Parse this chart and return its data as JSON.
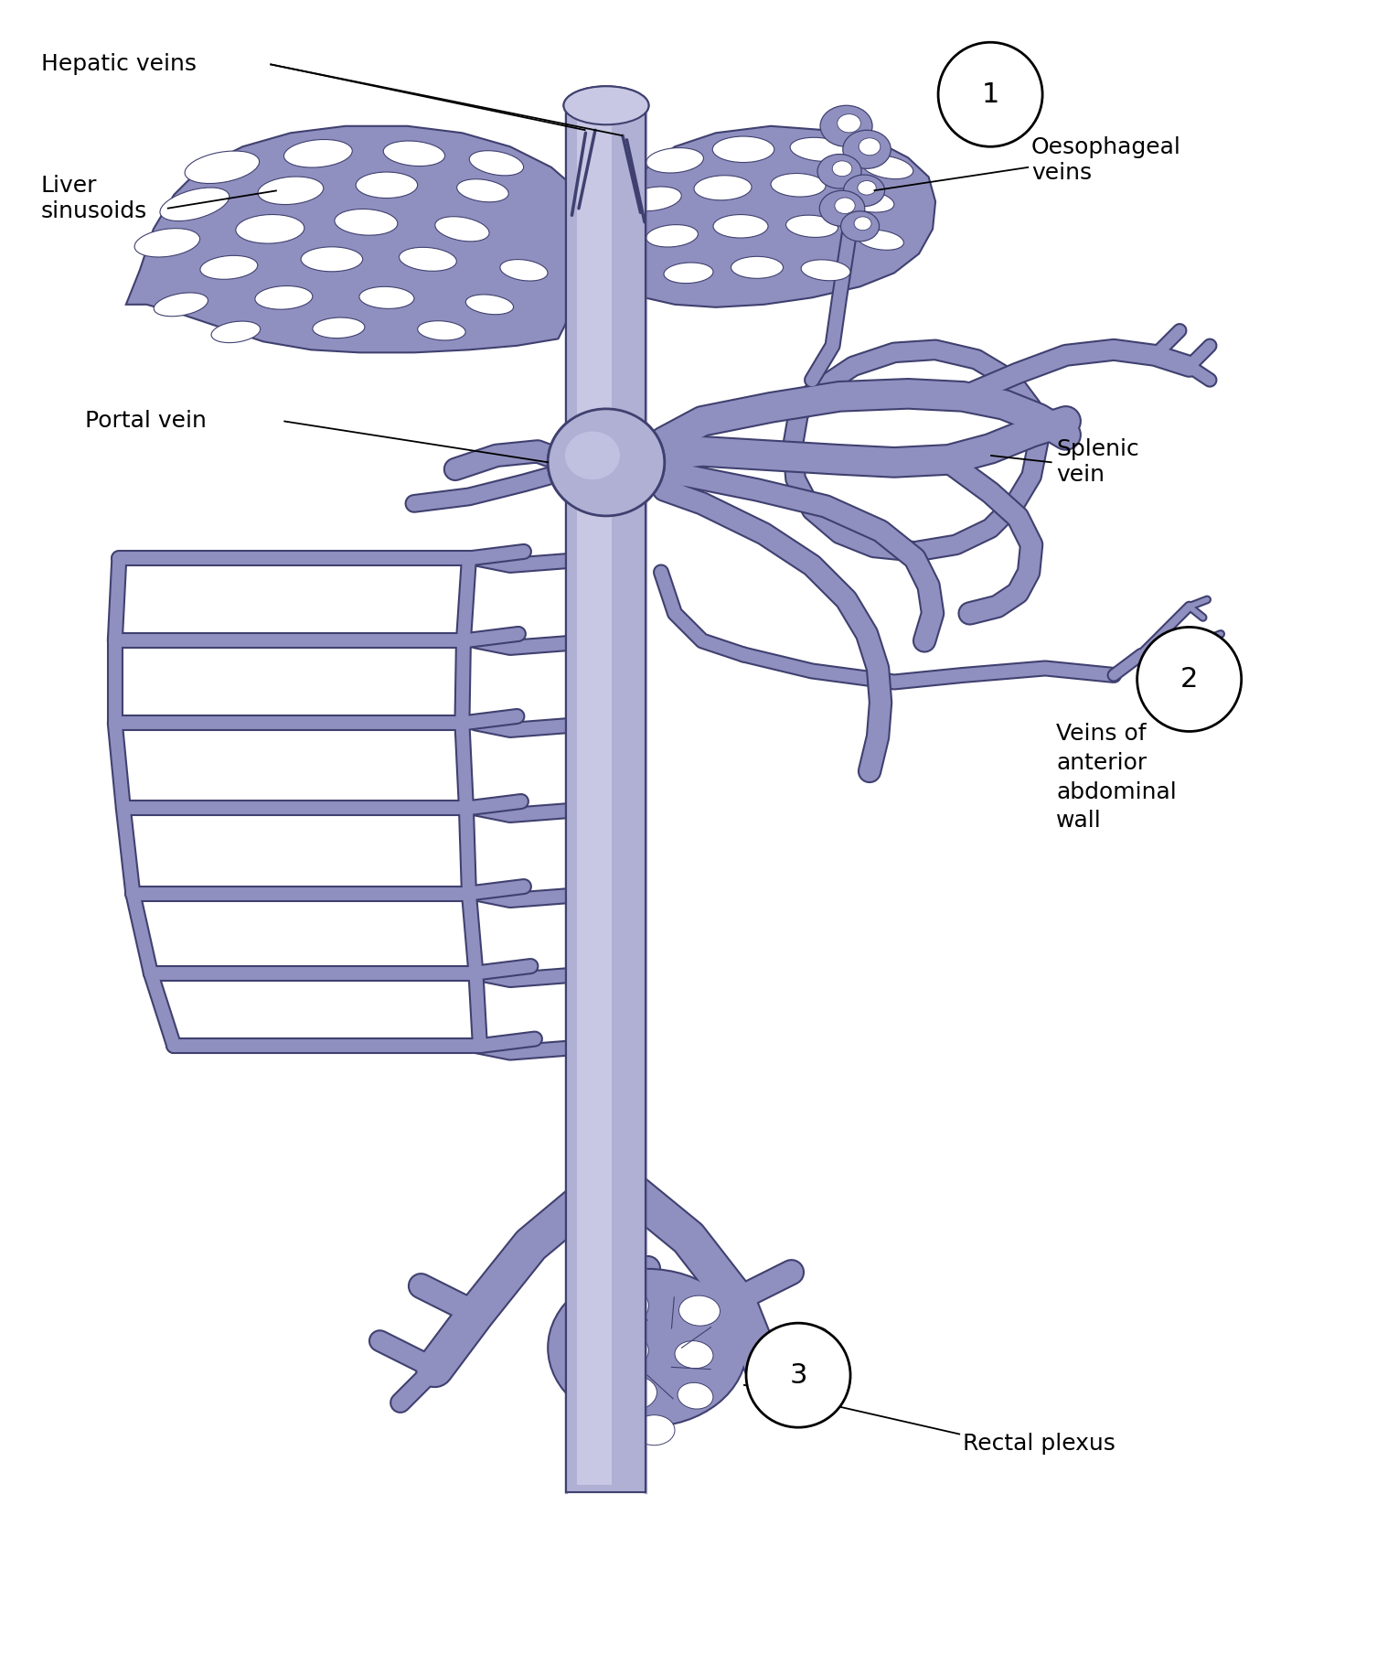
{
  "bg_color": "#ffffff",
  "vc": "#9090c0",
  "vc_light": "#b0b0d5",
  "vc_lighter": "#c8c8e5",
  "vc_dark": "#6868a8",
  "outline": "#404070",
  "figsize": [
    15.06,
    18.21
  ],
  "dpi": 100,
  "labels": {
    "hepatic_veins": "Hepatic veins",
    "liver_sinusoids": "Liver\nsinusoids",
    "portal_vein": "Portal vein",
    "oesophageal_veins": "Oesophageal\nveins",
    "splenic_vein": "Splenic\nvein",
    "veins_anterior": "Veins of\nanterior\nabdominal\nwall",
    "rectal_plexus": "Rectal plexus"
  }
}
